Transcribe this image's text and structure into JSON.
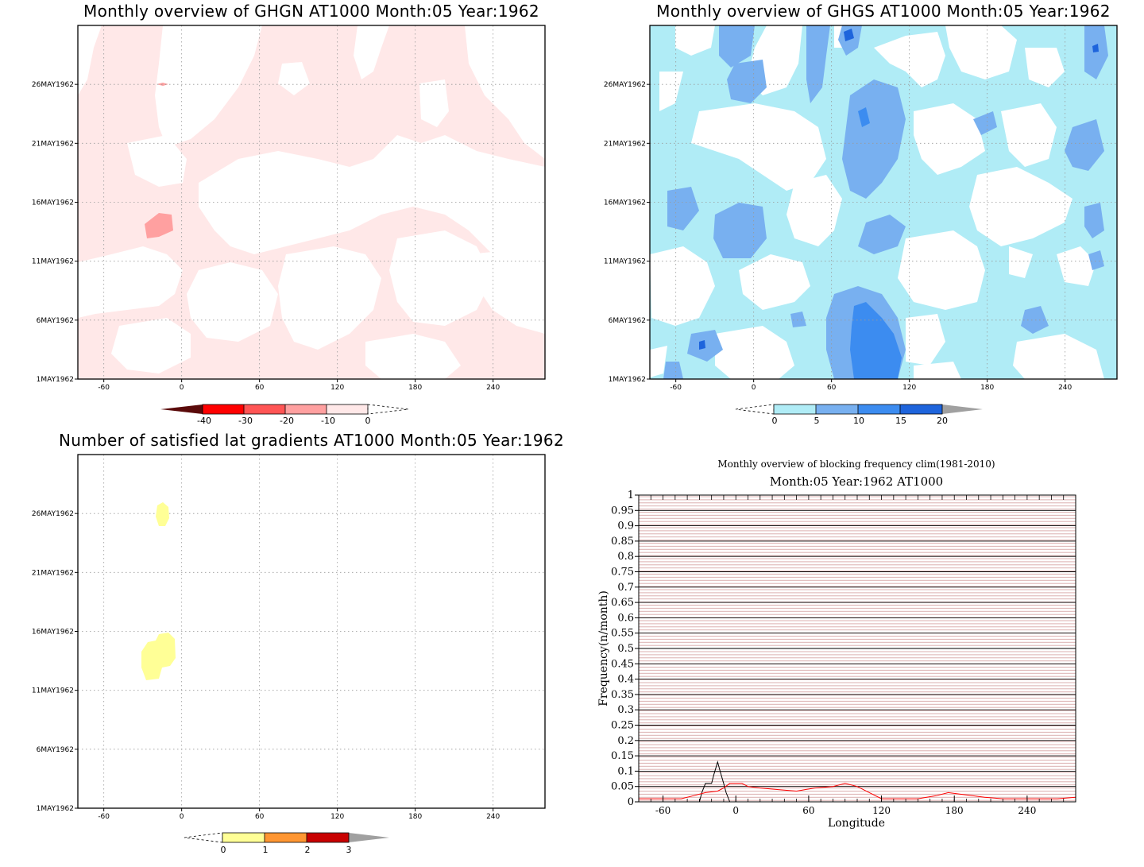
{
  "panels": {
    "ghgn": {
      "title": "Monthly overview of GHGN AT1000 Month:05 Year:1962",
      "xticks": [
        "-60",
        "0",
        "60",
        "120",
        "180",
        "240"
      ],
      "yticks": [
        "1MAY1962",
        "6MAY1962",
        "11MAY1962",
        "16MAY1962",
        "21MAY1962",
        "26MAY1962"
      ],
      "colorbar": {
        "ticks": [
          "-40",
          "-30",
          "-20",
          "-10",
          "0"
        ],
        "colors": [
          "#5a0a0a",
          "#ff0000",
          "#ff5555",
          "#ffa0a0",
          "#ffe8e8"
        ]
      }
    },
    "ghgs": {
      "title": "Monthly overview of GHGS AT1000 Month:05 Year:1962",
      "xticks": [
        "-60",
        "0",
        "60",
        "120",
        "180",
        "240"
      ],
      "yticks": [
        "1MAY1962",
        "6MAY1962",
        "11MAY1962",
        "16MAY1962",
        "21MAY1962",
        "26MAY1962"
      ],
      "colorbar": {
        "ticks": [
          "0",
          "5",
          "10",
          "15",
          "20"
        ],
        "colors": [
          "#b0ecf6",
          "#78b0f0",
          "#3c8cf0",
          "#1e64dc",
          "#a0a0a0"
        ]
      }
    },
    "gradients": {
      "title": "Number of satisfied lat gradients AT1000 Month:05 Year:1962",
      "xticks": [
        "-60",
        "0",
        "60",
        "120",
        "180",
        "240"
      ],
      "yticks": [
        "1MAY1962",
        "6MAY1962",
        "11MAY1962",
        "16MAY1962",
        "21MAY1962",
        "26MAY1962"
      ],
      "colorbar": {
        "ticks": [
          "0",
          "1",
          "2",
          "3"
        ],
        "colors": [
          "#ffff96",
          "#ff9632",
          "#c80000",
          "#a0a0a0"
        ]
      }
    }
  },
  "chart_data": [
    {
      "type": "heatmap",
      "title": "Monthly overview of GHGN AT1000 Month:05 Year:1962",
      "x_range": [
        -80,
        280
      ],
      "y_range": [
        "1MAY1962",
        "31MAY1962"
      ],
      "levels": [
        -40,
        -30,
        -20,
        -10,
        0
      ]
    },
    {
      "type": "heatmap",
      "title": "Monthly overview of GHGS AT1000 Month:05 Year:1962",
      "x_range": [
        -80,
        280
      ],
      "y_range": [
        "1MAY1962",
        "31MAY1962"
      ],
      "levels": [
        0,
        5,
        10,
        15,
        20
      ]
    },
    {
      "type": "heatmap",
      "title": "Number of satisfied lat gradients AT1000 Month:05 Year:1962",
      "x_range": [
        -80,
        280
      ],
      "y_range": [
        "1MAY1962",
        "31MAY1962"
      ],
      "levels": [
        0,
        1,
        2,
        3
      ]
    },
    {
      "type": "line",
      "title": "Monthly overview of blocking frequency clim(1981-2010)",
      "subtitle": "Month:05 Year:1962  AT1000",
      "xlabel": "Longitude",
      "ylabel": "Frequency(n/month)",
      "xlim": [
        -80,
        280
      ],
      "ylim": [
        0,
        1
      ],
      "xticks": [
        -60,
        0,
        60,
        120,
        180,
        240
      ],
      "yticks": [
        "0",
        "0.05",
        "0.1",
        "0.15",
        "0.2",
        "0.25",
        "0.3",
        "0.35",
        "0.4",
        "0.45",
        "0.5",
        "0.55",
        "0.6",
        "0.65",
        "0.7",
        "0.75",
        "0.8",
        "0.85",
        "0.9",
        "0.95",
        "1"
      ],
      "series": [
        {
          "color": "#000000",
          "x": [
            -80,
            -30,
            -28,
            -25,
            -20,
            -18,
            -15,
            -13,
            -10,
            -8,
            -5,
            280
          ],
          "y": [
            0,
            0,
            0.03,
            0.06,
            0.06,
            0.09,
            0.13,
            0.1,
            0.06,
            0.03,
            0,
            0
          ]
        },
        {
          "color": "#ff0000",
          "x": [
            -80,
            -60,
            -45,
            -35,
            -25,
            -15,
            -10,
            -5,
            5,
            10,
            20,
            35,
            50,
            65,
            80,
            85,
            90,
            100,
            110,
            120,
            135,
            150,
            165,
            175,
            185,
            195,
            205,
            220,
            235,
            250,
            265,
            280
          ],
          "y": [
            0.01,
            0.01,
            0.01,
            0.02,
            0.03,
            0.035,
            0.045,
            0.06,
            0.06,
            0.05,
            0.045,
            0.04,
            0.035,
            0.045,
            0.05,
            0.055,
            0.06,
            0.05,
            0.03,
            0.01,
            0.01,
            0.01,
            0.02,
            0.03,
            0.025,
            0.02,
            0.015,
            0.01,
            0.01,
            0.01,
            0.01,
            0.015
          ]
        }
      ]
    }
  ]
}
